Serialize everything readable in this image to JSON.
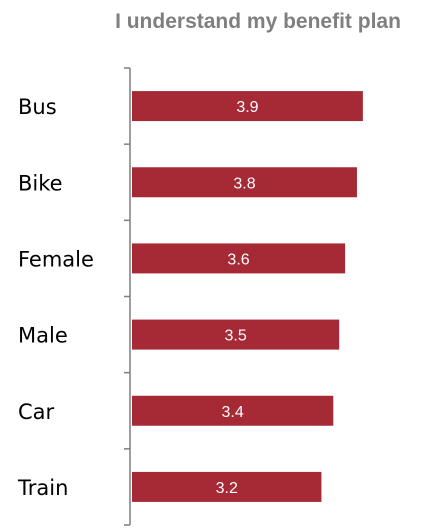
{
  "chart_data": {
    "type": "bar",
    "orientation": "horizontal",
    "title": "I understand my benefit plan",
    "xlabel": "",
    "ylabel": "",
    "categories": [
      "Bus",
      "Bike",
      "Female",
      "Male",
      "Car",
      "Train"
    ],
    "values": [
      3.9,
      3.8,
      3.6,
      3.5,
      3.4,
      3.2
    ],
    "value_labels": [
      "3.9",
      "3.8",
      "3.6",
      "3.5",
      "3.4",
      "3.2"
    ],
    "xlim": [
      0,
      5
    ],
    "grid": false,
    "legend": "none",
    "colors": {
      "bar": "#A52A35",
      "bar_label": "#FFFFFF",
      "title": "#7F7F7F",
      "axis": "#7F7F7F"
    }
  }
}
